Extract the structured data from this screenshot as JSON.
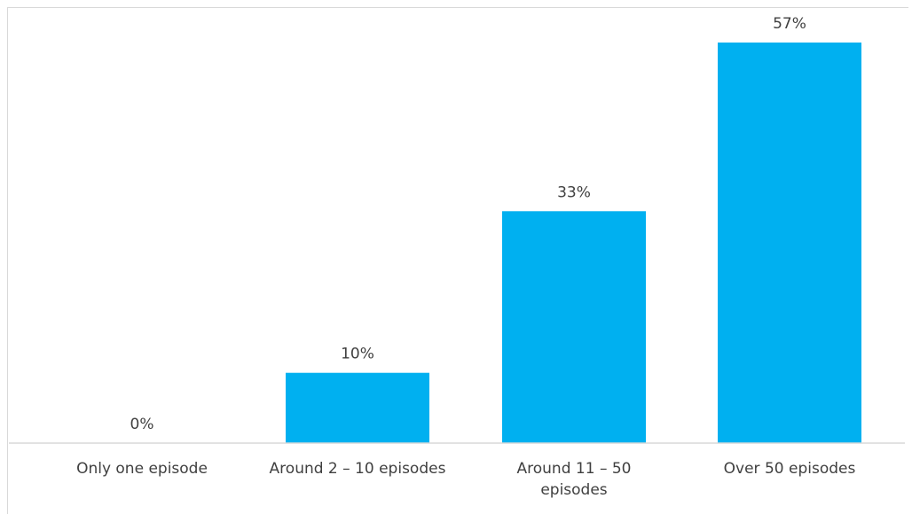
{
  "chart_data": {
    "type": "bar",
    "categories": [
      [
        "Only one episode"
      ],
      [
        "Around 2 – 10 episodes"
      ],
      [
        "Around 11 – 50",
        "episodes"
      ],
      [
        "Over 50 episodes"
      ]
    ],
    "values": [
      0,
      10,
      33,
      57
    ],
    "data_labels": [
      "0%",
      "10%",
      "33%",
      "57%"
    ],
    "title": "",
    "xlabel": "",
    "ylabel": "",
    "ylim": [
      0,
      60
    ],
    "grid": false,
    "legend": "none",
    "bar_color": "#00B0F0",
    "axis_color": "#d9d9d9",
    "text_color": "#404040"
  }
}
